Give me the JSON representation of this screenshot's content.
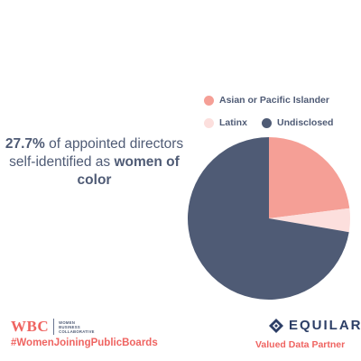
{
  "chart_data": {
    "type": "pie",
    "headline": {
      "percent": "27.7%",
      "middle": " of appointed directors self-identified as ",
      "emphasis": "women of color"
    },
    "slices": [
      {
        "label": "Asian or Pacific Islander",
        "value": 23.0,
        "color": "#f59f96"
      },
      {
        "label": "Latinx",
        "value": 4.7,
        "color": "#fcdfdd"
      },
      {
        "label": "Undisclosed",
        "value": 72.3,
        "color": "#4f5b75"
      }
    ]
  },
  "footer": {
    "wbc_letters": "WBC",
    "wbc_words": [
      "WOMEN",
      "BUSINESS",
      "COLLABORATIVE"
    ],
    "hashtag": "#WomenJoiningPublicBoards",
    "equilar_name": "EQUILAR",
    "partner": "Valued Data Partner",
    "equilar_color": "#2c3e66"
  }
}
